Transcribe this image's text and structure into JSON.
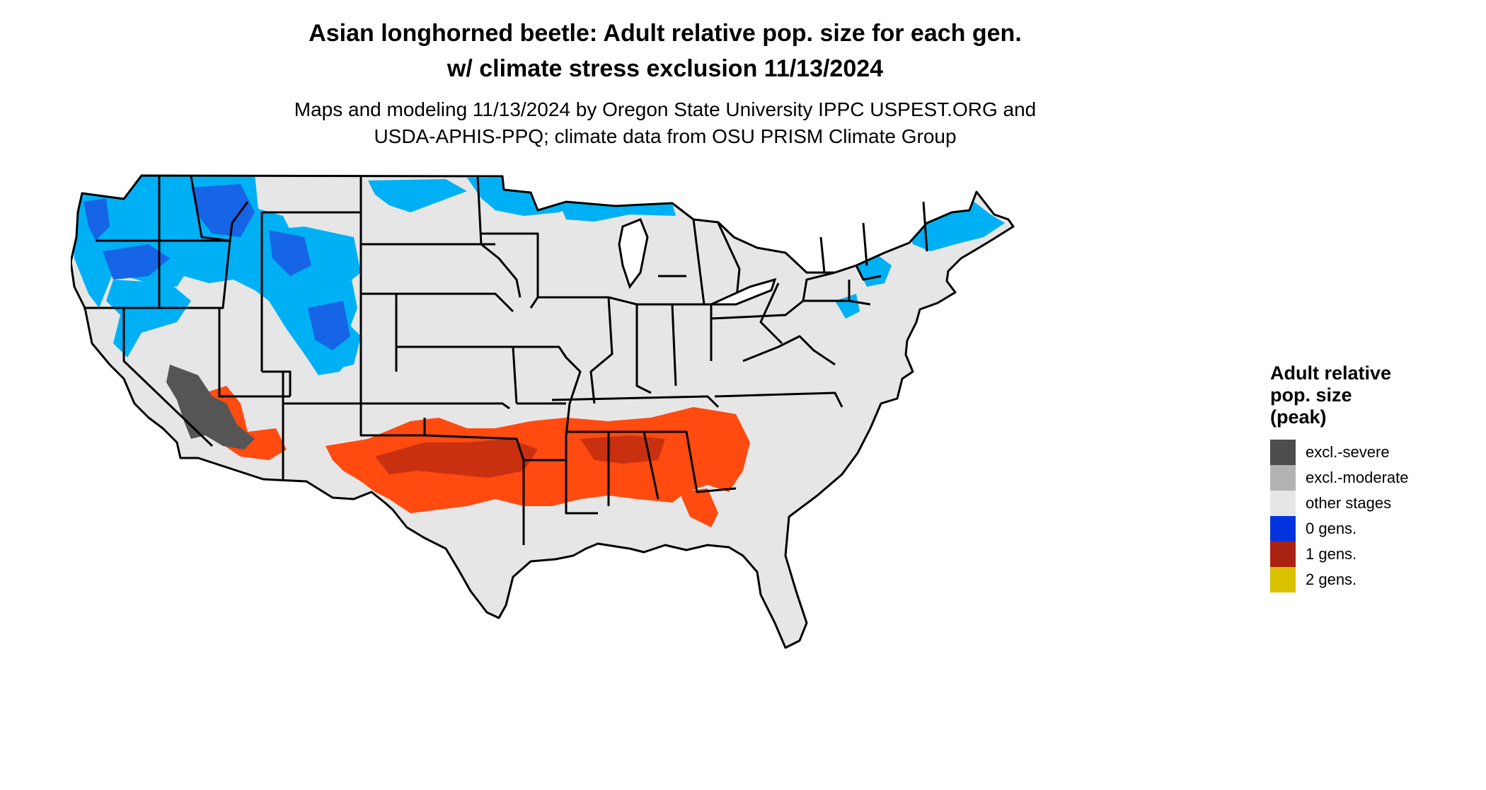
{
  "title": {
    "line1": "Asian longhorned beetle: Adult relative pop. size for each gen.",
    "line2": "w/ climate stress exclusion 11/13/2024"
  },
  "subtitle": {
    "line1": "Maps and modeling 11/13/2024 by Oregon State University IPPC USPEST.ORG and",
    "line2": "USDA-APHIS-PPQ; climate data from OSU PRISM Climate Group"
  },
  "legend": {
    "title_lines": [
      "Adult relative",
      "pop. size",
      "(peak)"
    ],
    "items": [
      {
        "label": "excl.-severe",
        "color": "#4d4d4d"
      },
      {
        "label": "excl.-moderate",
        "color": "#b3b3b3"
      },
      {
        "label": "other stages",
        "color": "#e6e6e6"
      },
      {
        "label": "0 gens.",
        "color": "#0033dd"
      },
      {
        "label": "1 gens.",
        "color": "#aa2211"
      },
      {
        "label": "2 gens.",
        "color": "#d9c100"
      }
    ]
  },
  "map": {
    "region": "Contiguous United States",
    "base_color": "#e6e6e6",
    "boundary_color": "#000000",
    "zone_colors": {
      "zero_gens_light": "#00b0f5",
      "zero_gens_dark": "#1565e6",
      "one_gen_light": "#ff4a10",
      "one_gen_dark": "#c83010",
      "excluded_severe": "#555555"
    }
  }
}
